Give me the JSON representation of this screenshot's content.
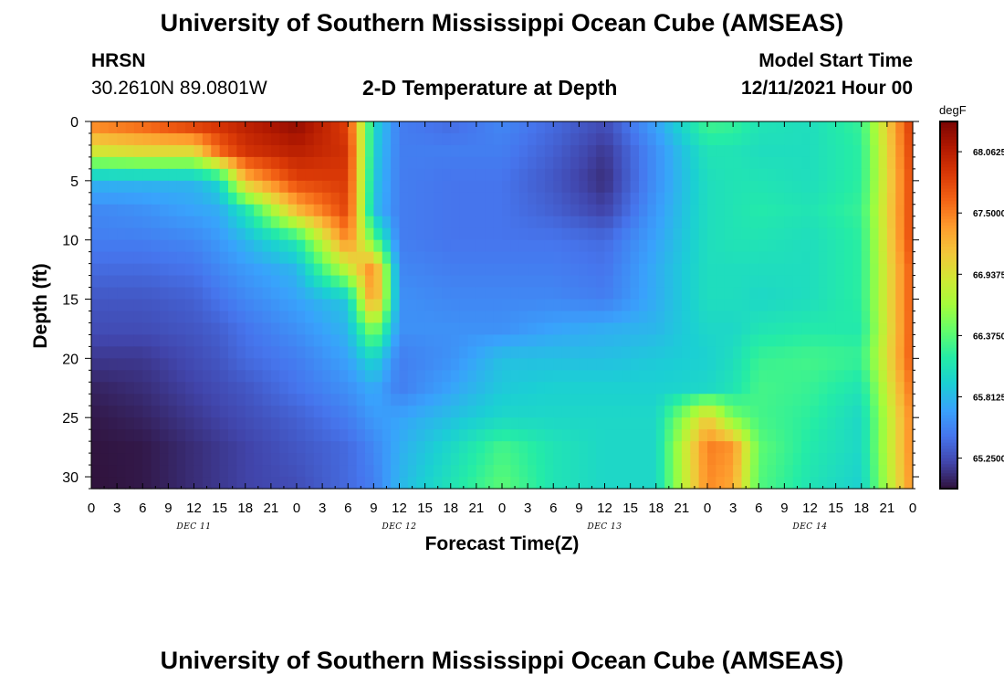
{
  "header": {
    "title": "University of Southern Mississippi Ocean Cube (AMSEAS)",
    "station": "HRSN",
    "coordinates": "30.2610N  89.0801W",
    "subtitle": "2-D Temperature at Depth",
    "model_start_label": "Model Start Time",
    "model_start_value": "12/11/2021 Hour 00"
  },
  "footer": {
    "title": "University of Southern Mississippi Ocean Cube (AMSEAS)"
  },
  "chart_data": {
    "type": "heatmap",
    "title": "2-D Temperature at Depth",
    "xlabel": "Forecast Time(Z)",
    "ylabel": "Depth (ft)",
    "x_tick_labels": [
      "0",
      "3",
      "6",
      "9",
      "12",
      "15",
      "18",
      "21",
      "0",
      "3",
      "6",
      "9",
      "12",
      "15",
      "18",
      "21",
      "0",
      "3",
      "6",
      "9",
      "12",
      "15",
      "18",
      "21",
      "0",
      "3",
      "6",
      "9",
      "12",
      "15",
      "18",
      "21",
      "0"
    ],
    "x_range_hours": [
      0,
      96
    ],
    "day_labels": [
      "DEC 11",
      "DEC 12",
      "DEC 13",
      "DEC 14"
    ],
    "y_ticks": [
      0,
      5,
      10,
      15,
      20,
      25,
      30
    ],
    "y_range_ft": [
      0,
      31
    ],
    "y_inverted": true,
    "colorbar": {
      "unit": "degF",
      "labels": [
        "68.0625",
        "67.5000",
        "66.9375",
        "66.3750",
        "65.8125",
        "65.2500"
      ],
      "range": [
        64.97,
        68.34
      ],
      "colors": [
        "#30123b",
        "#4145ab",
        "#4675ed",
        "#39a2fc",
        "#1bcfd4",
        "#24eca6",
        "#61fc6c",
        "#a4fc3b",
        "#d1e834",
        "#f3c63a",
        "#fe9b2d",
        "#f36315",
        "#d93806",
        "#b11901",
        "#7a0403"
      ]
    },
    "depth_profile_ft": [
      0,
      2.5,
      5,
      7.5,
      10,
      12.5,
      15,
      17.5,
      20,
      22.5,
      25,
      27.5,
      31
    ],
    "time_hours": [
      0,
      6,
      12,
      15,
      18,
      24,
      30,
      33,
      36,
      42,
      48,
      54,
      60,
      66,
      72,
      75,
      78,
      84,
      90,
      96
    ],
    "temperature_degF": [
      [
        67.55,
        67.7,
        67.95,
        67.95,
        68.05,
        68.25,
        67.8,
        66.0,
        65.5,
        65.4,
        65.55,
        65.4,
        65.25,
        65.7,
        66.3,
        66.25,
        66.1,
        66.05,
        66.25,
        67.9
      ],
      [
        66.9,
        67.0,
        67.0,
        67.6,
        67.9,
        68.05,
        67.9,
        65.95,
        65.5,
        65.5,
        65.5,
        65.35,
        65.15,
        65.6,
        66.1,
        66.1,
        66.05,
        66.05,
        66.2,
        67.85
      ],
      [
        65.8,
        65.8,
        65.8,
        66.0,
        67.2,
        67.8,
        67.85,
        65.9,
        65.5,
        65.45,
        65.45,
        65.3,
        65.1,
        65.6,
        66.05,
        66.1,
        66.1,
        66.05,
        66.2,
        67.8
      ],
      [
        65.55,
        65.6,
        65.7,
        65.75,
        66.1,
        67.2,
        67.8,
        65.85,
        65.5,
        65.45,
        65.45,
        65.35,
        65.2,
        65.65,
        66.05,
        66.1,
        66.15,
        66.1,
        66.25,
        67.8
      ],
      [
        65.5,
        65.5,
        65.55,
        65.65,
        65.8,
        66.15,
        67.5,
        66.4,
        65.5,
        65.45,
        65.45,
        65.45,
        65.4,
        65.7,
        66.05,
        66.1,
        66.1,
        66.05,
        66.2,
        67.8
      ],
      [
        65.4,
        65.4,
        65.45,
        65.55,
        65.65,
        65.8,
        66.8,
        67.5,
        65.55,
        65.5,
        65.5,
        65.5,
        65.45,
        65.75,
        66.05,
        66.05,
        66.05,
        66.05,
        66.2,
        67.7
      ],
      [
        65.3,
        65.3,
        65.35,
        65.45,
        65.55,
        65.7,
        65.9,
        67.5,
        65.6,
        65.55,
        65.55,
        65.55,
        65.5,
        65.75,
        66.05,
        66.05,
        66.0,
        66.05,
        66.2,
        67.7
      ],
      [
        65.25,
        65.25,
        65.3,
        65.35,
        65.45,
        65.6,
        65.8,
        66.6,
        65.6,
        65.6,
        65.6,
        65.7,
        65.75,
        65.8,
        66.0,
        66.0,
        66.1,
        66.15,
        66.15,
        67.7
      ],
      [
        65.15,
        65.15,
        65.25,
        65.3,
        65.4,
        65.5,
        65.7,
        66.0,
        65.5,
        65.6,
        65.85,
        65.85,
        65.85,
        65.9,
        65.95,
        66.05,
        66.25,
        66.3,
        66.25,
        67.7
      ],
      [
        65.05,
        65.1,
        65.2,
        65.25,
        65.3,
        65.45,
        65.6,
        65.75,
        65.5,
        65.7,
        65.9,
        65.95,
        65.95,
        65.95,
        66.0,
        66.1,
        66.3,
        66.25,
        66.1,
        67.6
      ],
      [
        65.0,
        65.05,
        65.15,
        65.2,
        65.25,
        65.35,
        65.5,
        65.65,
        65.7,
        65.85,
        66.0,
        66.0,
        66.0,
        66.0,
        67.1,
        66.5,
        66.3,
        66.2,
        66.0,
        67.5
      ],
      [
        64.98,
        65.0,
        65.1,
        65.15,
        65.2,
        65.3,
        65.4,
        65.55,
        65.75,
        66.0,
        66.3,
        66.1,
        66.0,
        66.0,
        67.5,
        67.4,
        66.4,
        66.15,
        66.0,
        67.5
      ],
      [
        64.97,
        65.0,
        65.1,
        65.15,
        65.2,
        65.25,
        65.4,
        65.5,
        65.8,
        66.1,
        66.4,
        66.1,
        66.0,
        66.0,
        67.45,
        67.3,
        66.35,
        66.1,
        65.95,
        67.45
      ]
    ]
  }
}
